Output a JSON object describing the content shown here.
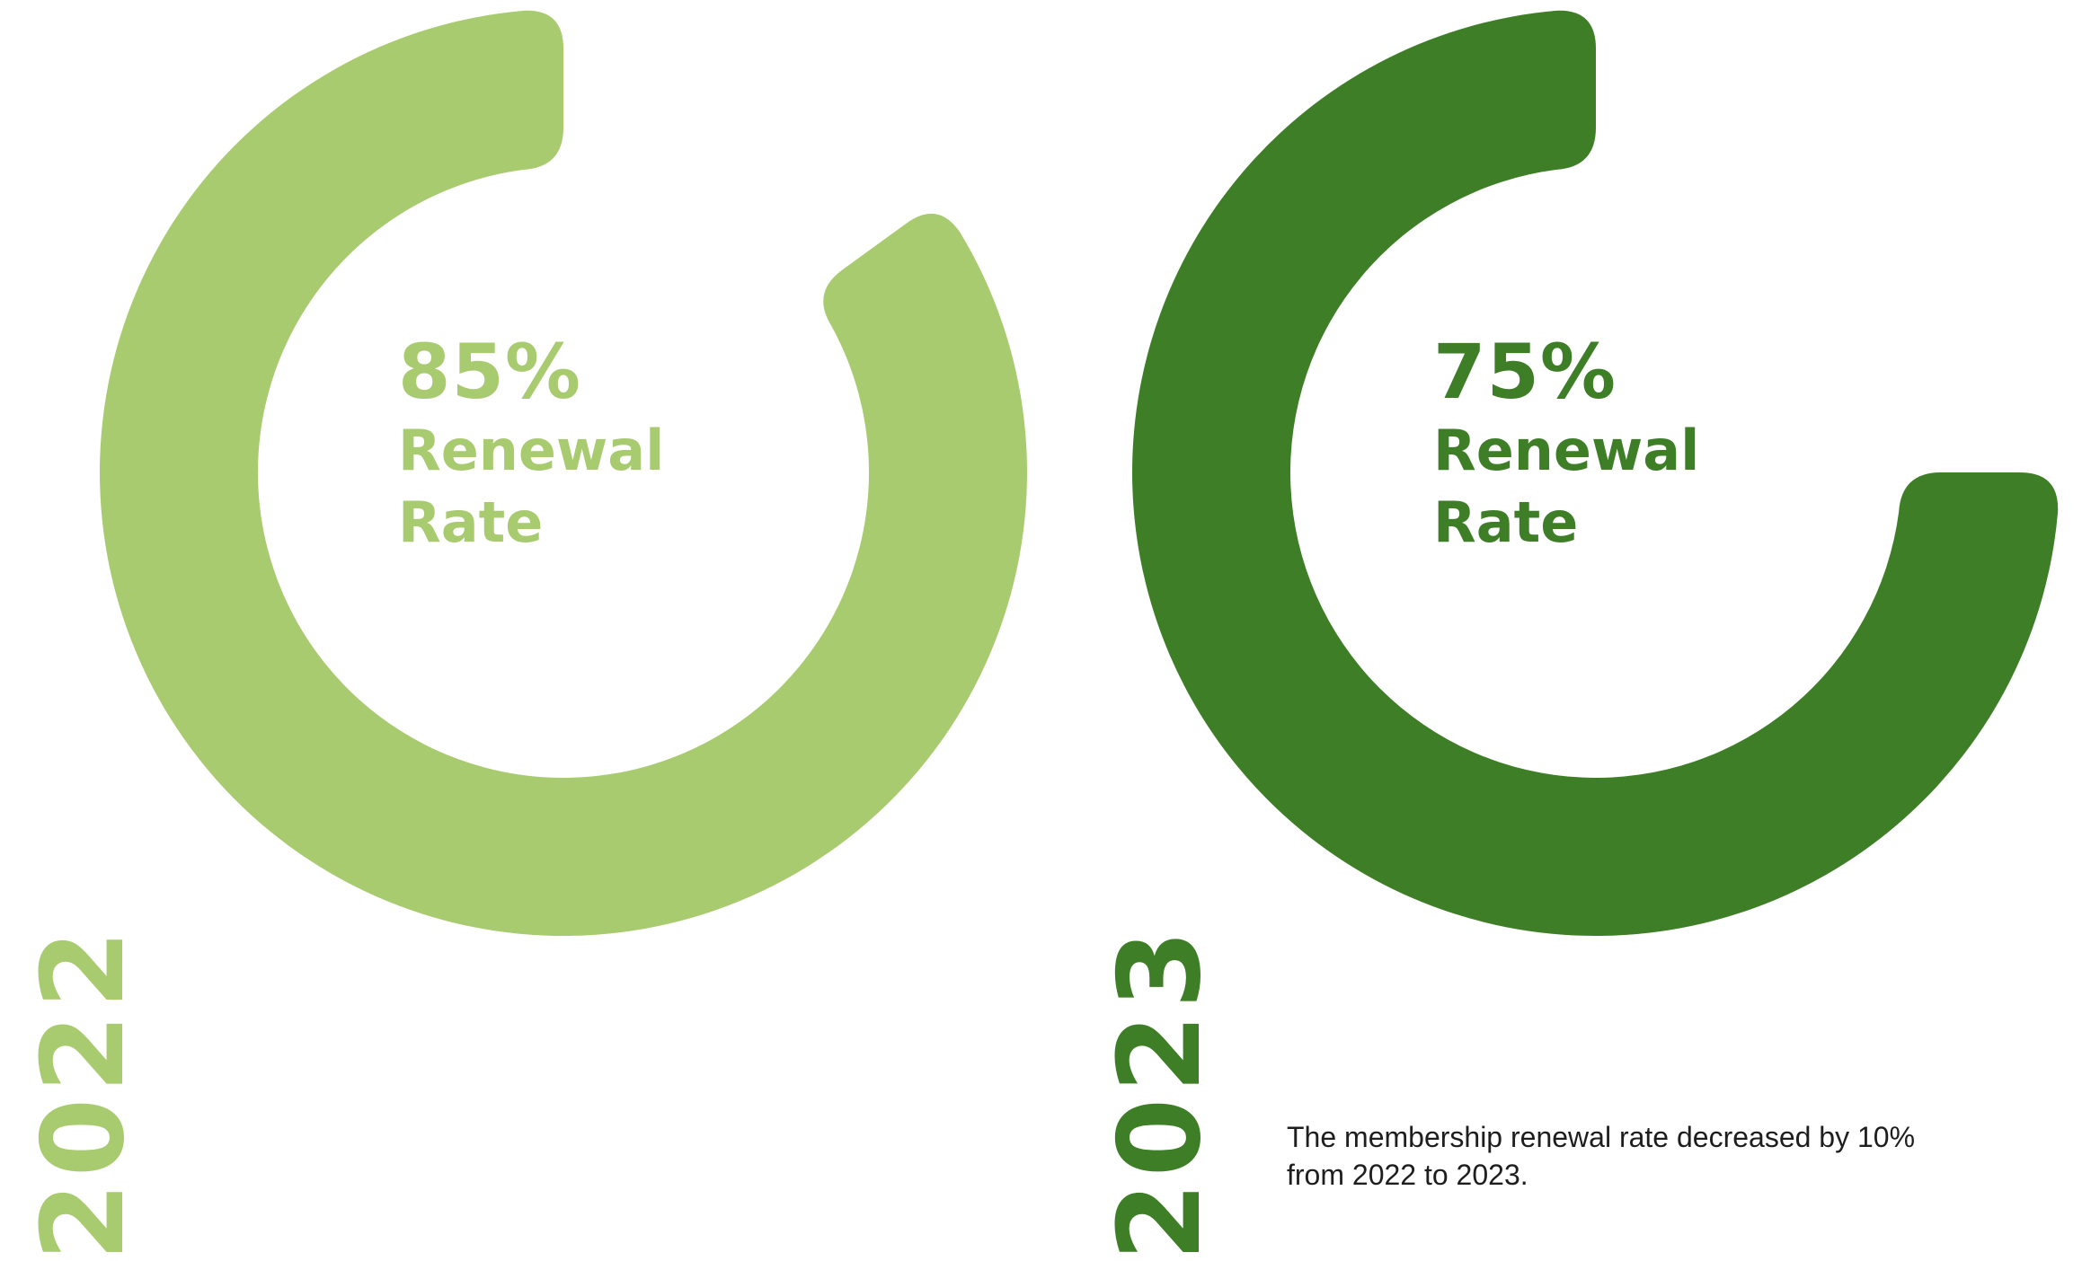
{
  "chart_data": [
    {
      "type": "donut",
      "year": "2022",
      "value": 85,
      "value_label": "85%",
      "label_line1": "Renewal",
      "label_line2": "Rate",
      "color": "#a8cb6f"
    },
    {
      "type": "donut",
      "year": "2023",
      "value": 75,
      "value_label": "75%",
      "label_line1": "Renewal",
      "label_line2": "Rate",
      "color": "#3d7e27"
    }
  ],
  "note": {
    "line1": "The membership renewal rate decreased by 10%",
    "line2": "from 2022 to 2023."
  }
}
